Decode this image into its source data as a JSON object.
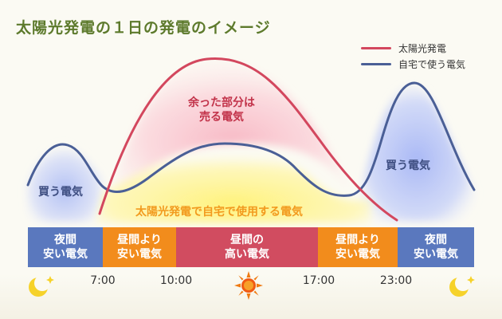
{
  "title": "太陽光発電の１日の発電のイメージ",
  "legend": [
    {
      "label": "太陽光発電",
      "color": "#d3475e",
      "icon": "legend-line-red"
    },
    {
      "label": "自宅で使う電気",
      "color": "#4a5f96",
      "icon": "legend-line-blue"
    }
  ],
  "annotations": {
    "sell_line1": "余った部分は",
    "sell_line2": "売る電気",
    "buy_left": "買う電気",
    "buy_right": "買う電気",
    "self_use": "太陽光発電で自宅で使用する電気"
  },
  "bands": [
    {
      "line1": "夜間",
      "line2": "安い電気",
      "color": "#5a78be"
    },
    {
      "line1": "昼間より",
      "line2": "安い電気",
      "color": "#f28c1c"
    },
    {
      "line1": "昼間の",
      "line2": "高い電気",
      "color": "#d14c60"
    },
    {
      "line1": "昼間より",
      "line2": "安い電気",
      "color": "#f28c1c"
    },
    {
      "line1": "夜間",
      "line2": "安い電気",
      "color": "#5a78be"
    }
  ],
  "times": [
    "7:00",
    "10:00",
    "17:00",
    "23:00"
  ],
  "icons": {
    "night_left": "moon-star-icon",
    "day": "sun-icon",
    "night_right": "moon-star-icon"
  },
  "colors": {
    "title": "#5d7a2c",
    "solar": "#d3475e",
    "usage": "#4a5f96",
    "sell_text": "#c2334a",
    "buy_text": "#3f4f82",
    "self_text": "#f29a1e"
  }
}
